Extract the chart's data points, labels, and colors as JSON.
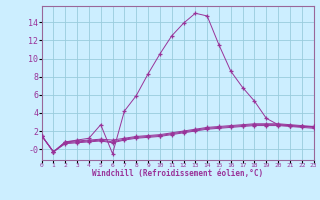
{
  "xlabel": "Windchill (Refroidissement éolien,°C)",
  "background_color": "#cceeff",
  "grid_color": "#99ccdd",
  "line_color": "#993399",
  "spine_color": "#996699",
  "x_main": [
    0,
    1,
    2,
    3,
    4,
    5,
    6,
    7,
    8,
    9,
    10,
    11,
    12,
    13,
    14,
    15,
    16,
    17,
    18,
    19,
    20,
    21,
    22,
    23
  ],
  "y_main": [
    1.5,
    -0.3,
    0.8,
    1.0,
    1.2,
    2.7,
    -0.5,
    4.2,
    5.9,
    8.3,
    10.5,
    12.5,
    13.9,
    15.0,
    14.7,
    11.5,
    8.6,
    6.8,
    5.3,
    3.4,
    2.7,
    2.6,
    2.5,
    2.5
  ],
  "y_line2": [
    1.5,
    -0.3,
    0.8,
    0.9,
    1.0,
    1.1,
    1.0,
    1.2,
    1.4,
    1.5,
    1.6,
    1.8,
    2.0,
    2.2,
    2.4,
    2.5,
    2.6,
    2.7,
    2.8,
    2.8,
    2.8,
    2.7,
    2.6,
    2.5
  ],
  "y_line3": [
    1.5,
    -0.3,
    0.7,
    0.8,
    0.9,
    1.0,
    0.8,
    1.1,
    1.3,
    1.4,
    1.5,
    1.7,
    1.9,
    2.1,
    2.3,
    2.4,
    2.5,
    2.6,
    2.7,
    2.7,
    2.7,
    2.6,
    2.5,
    2.4
  ],
  "y_line4": [
    1.5,
    -0.3,
    0.6,
    0.7,
    0.8,
    0.9,
    0.7,
    1.0,
    1.2,
    1.3,
    1.4,
    1.6,
    1.8,
    2.0,
    2.2,
    2.3,
    2.4,
    2.5,
    2.6,
    2.6,
    2.6,
    2.5,
    2.4,
    2.3
  ],
  "ylim": [
    -1.2,
    15.8
  ],
  "xlim": [
    0,
    23
  ],
  "yticks": [
    0,
    2,
    4,
    6,
    8,
    10,
    12,
    14
  ],
  "ytick_labels": [
    "-0",
    "2",
    "4",
    "6",
    "8",
    "10",
    "12",
    "14"
  ],
  "xticks": [
    0,
    1,
    2,
    3,
    4,
    5,
    6,
    7,
    8,
    9,
    10,
    11,
    12,
    13,
    14,
    15,
    16,
    17,
    18,
    19,
    20,
    21,
    22,
    23
  ],
  "xtick_labels": [
    "0",
    "1",
    "2",
    "3",
    "4",
    "5",
    "6",
    "7",
    "8",
    "9",
    "10",
    "11",
    "12",
    "13",
    "14",
    "15",
    "16",
    "17",
    "18",
    "19",
    "20",
    "21",
    "22",
    "23"
  ]
}
